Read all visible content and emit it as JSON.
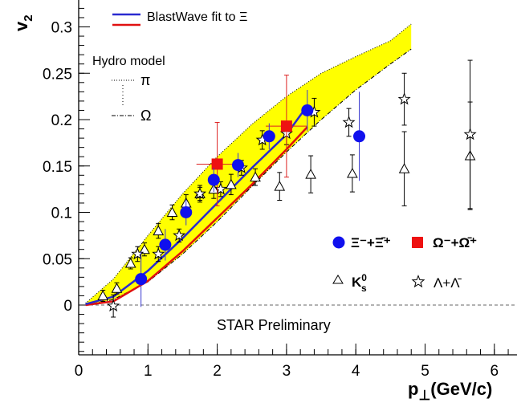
{
  "chart_data": {
    "type": "scatter",
    "title": "",
    "xlabel_main": "p",
    "xlabel_sub": "⊥",
    "xlabel_unit": "(GeV/c)",
    "ylabel_main": "v",
    "ylabel_sub": "2",
    "xlim": [
      0,
      6.5
    ],
    "ylim": [
      -0.055,
      0.33
    ],
    "xticks": [
      0,
      1,
      2,
      3,
      4,
      5,
      6
    ],
    "yticks": [
      0,
      0.05,
      0.1,
      0.15,
      0.2,
      0.25,
      0.3
    ],
    "ytick_labels": [
      "0",
      "0.05",
      "0.1",
      "0.15",
      "0.2",
      "0.25",
      "0.3"
    ],
    "annotation": "STAR Preliminary",
    "legend_fit": {
      "label": "BlastWave fit to Ξ",
      "colors": [
        "#2a2ad0",
        "#e01010"
      ]
    },
    "legend_hydro": {
      "title": "Hydro model",
      "pi_label": "π",
      "omega_label": "Ω"
    },
    "legend_species": {
      "xi_label": "Ξ⁻+Ξ̄⁺",
      "omega_label": "Ω⁻+Ω̄⁺",
      "k0s_label": "K",
      "k0s_sup": "0",
      "k0s_sub": "s",
      "lambda_label": "Λ+Λ̄"
    },
    "colors": {
      "band_fill": "#ffff00",
      "xi": "#1010ee",
      "xi_error": "#3a3ad0",
      "omega": "#ee1111",
      "omega_error": "#dd2222",
      "black": "#000000"
    },
    "hydro_band": {
      "pi_upper": [
        [
          0.1,
          0.002
        ],
        [
          0.5,
          0.028
        ],
        [
          1.0,
          0.075
        ],
        [
          1.5,
          0.12
        ],
        [
          2.0,
          0.16
        ],
        [
          2.5,
          0.195
        ],
        [
          3.0,
          0.225
        ],
        [
          3.5,
          0.25
        ],
        [
          4.0,
          0.268
        ],
        [
          4.5,
          0.285
        ],
        [
          4.8,
          0.303
        ]
      ],
      "omega_lower": [
        [
          0.1,
          0.0
        ],
        [
          0.5,
          0.006
        ],
        [
          1.0,
          0.025
        ],
        [
          1.5,
          0.055
        ],
        [
          2.0,
          0.09
        ],
        [
          2.5,
          0.128
        ],
        [
          3.0,
          0.165
        ],
        [
          3.5,
          0.2
        ],
        [
          4.0,
          0.232
        ],
        [
          4.5,
          0.26
        ],
        [
          4.8,
          0.276
        ]
      ]
    },
    "blastwave_blue": [
      [
        0.1,
        0.001
      ],
      [
        0.5,
        0.009
      ],
      [
        1.0,
        0.037
      ],
      [
        1.5,
        0.072
      ],
      [
        2.0,
        0.11
      ],
      [
        2.5,
        0.148
      ],
      [
        3.0,
        0.184
      ],
      [
        3.3,
        0.215
      ]
    ],
    "blastwave_red": [
      [
        0.1,
        0.0
      ],
      [
        0.5,
        0.004
      ],
      [
        1.0,
        0.026
      ],
      [
        1.5,
        0.058
      ],
      [
        2.0,
        0.094
      ],
      [
        2.5,
        0.13
      ],
      [
        3.0,
        0.168
      ],
      [
        3.3,
        0.192
      ]
    ],
    "series": [
      {
        "name": "Ξ⁻+Ξ̄⁺",
        "marker": "circle",
        "points": [
          [
            0.9,
            0.028,
            0.03
          ],
          [
            1.25,
            0.065,
            0.017
          ],
          [
            1.55,
            0.1,
            0.014
          ],
          [
            1.95,
            0.135,
            0.013
          ],
          [
            2.3,
            0.151,
            0.013
          ],
          [
            2.75,
            0.182,
            0.014
          ],
          [
            3.3,
            0.21,
            0.022
          ],
          [
            4.05,
            0.182,
            0.048
          ]
        ]
      },
      {
        "name": "Ω⁻+Ω̄⁺",
        "marker": "square",
        "points": [
          [
            2.0,
            0.152,
            0.045,
            0.3
          ],
          [
            3.0,
            0.193,
            0.055,
            0.3
          ]
        ]
      },
      {
        "name": "K⁰s",
        "marker": "triangle",
        "points": [
          [
            0.35,
            0.01,
            0.006
          ],
          [
            0.55,
            0.018,
            0.006
          ],
          [
            0.75,
            0.045,
            0.006
          ],
          [
            0.95,
            0.06,
            0.007
          ],
          [
            1.15,
            0.08,
            0.008
          ],
          [
            1.35,
            0.1,
            0.008
          ],
          [
            1.55,
            0.11,
            0.009
          ],
          [
            1.75,
            0.12,
            0.009
          ],
          [
            1.95,
            0.125,
            0.01
          ],
          [
            2.2,
            0.13,
            0.011
          ],
          [
            2.55,
            0.138,
            0.009
          ],
          [
            2.9,
            0.128,
            0.015
          ],
          [
            3.35,
            0.141,
            0.02
          ],
          [
            3.95,
            0.142,
            0.02
          ],
          [
            4.7,
            0.147,
            0.04
          ],
          [
            5.65,
            0.161,
            0.058
          ]
        ]
      },
      {
        "name": "Λ+Λ̄",
        "marker": "star",
        "points": [
          [
            0.5,
            -0.001,
            0.012
          ],
          [
            0.85,
            0.055,
            0.008
          ],
          [
            1.15,
            0.055,
            0.008
          ],
          [
            1.45,
            0.075,
            0.007
          ],
          [
            1.75,
            0.12,
            0.007
          ],
          [
            2.05,
            0.125,
            0.008
          ],
          [
            2.35,
            0.148,
            0.008
          ],
          [
            2.65,
            0.178,
            0.01
          ],
          [
            3.0,
            0.185,
            0.012
          ],
          [
            3.4,
            0.208,
            0.015
          ],
          [
            3.9,
            0.197,
            0.015
          ],
          [
            4.7,
            0.222,
            0.028
          ],
          [
            5.65,
            0.184,
            0.08
          ]
        ]
      }
    ]
  }
}
